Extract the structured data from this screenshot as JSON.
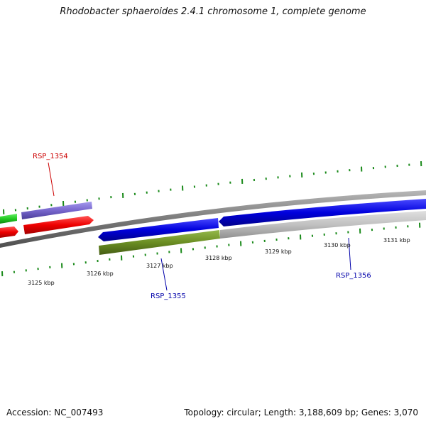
{
  "title": "Rhodobacter sphaeroides 2.4.1 chromosome 1, complete genome",
  "footer": {
    "accession": "Accession: NC_007493",
    "summary": "Topology: circular; Length: 3,188,609 bp; Genes: 3,070"
  },
  "scale_labels": [
    "3125 kbp",
    "3126 kbp",
    "3127 kbp",
    "3128 kbp",
    "3129 kbp",
    "3130 kbp",
    "3131 kbp"
  ],
  "gene_labels": [
    {
      "name": "RSP_1354",
      "color": "#cc0000"
    },
    {
      "name": "RSP_1355",
      "color": "#0000aa"
    },
    {
      "name": "RSP_1356",
      "color": "#0000aa"
    }
  ],
  "colors": {
    "tick": "#1a8a1a",
    "backbone": "#808080",
    "green": "#22cc22",
    "red": "#ee0000",
    "purple": "#7766cc",
    "blue": "#0000dd",
    "olive": "#6b8e23",
    "gray": "#c0c0c0"
  }
}
